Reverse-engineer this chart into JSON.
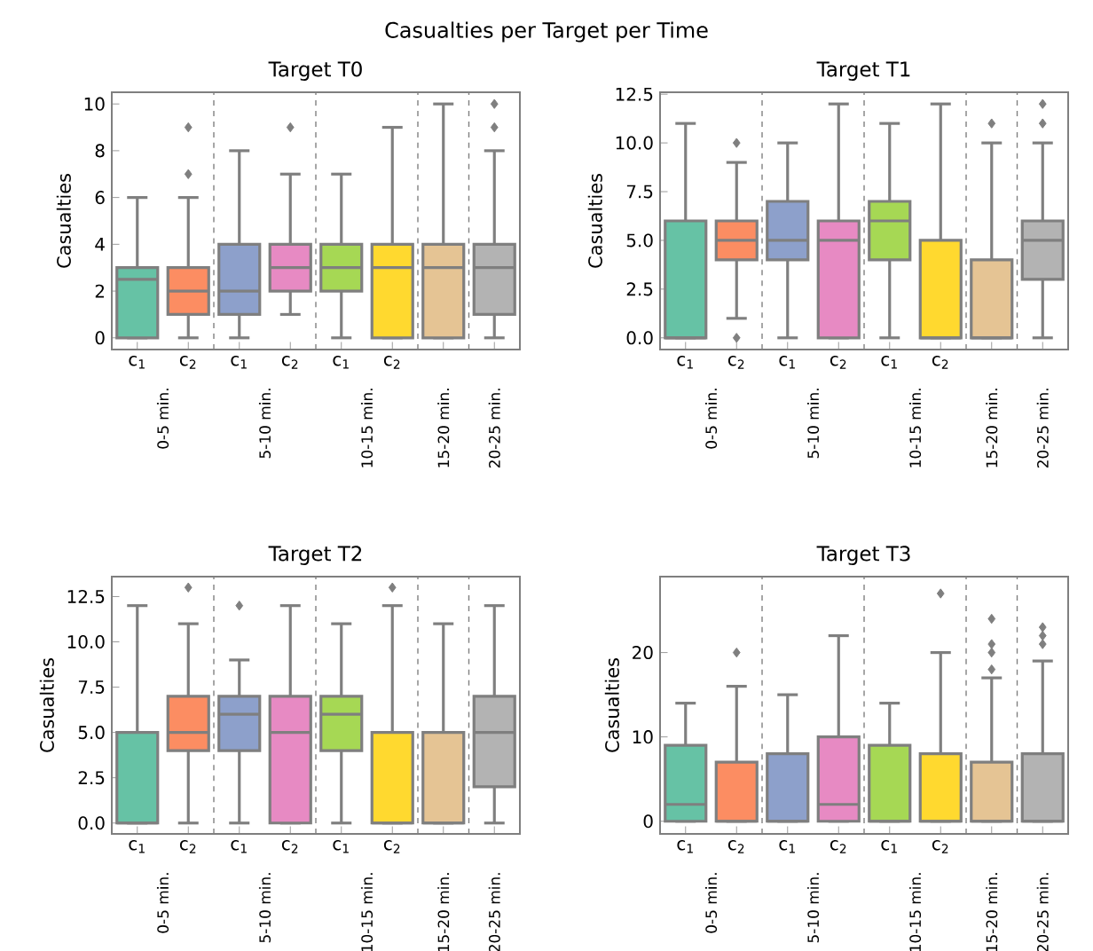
{
  "chart_data": [
    {
      "type": "box",
      "title": "Target T0",
      "ylabel": "Casualties",
      "categories": [
        "c$_{1}$",
        "c$_{2}$",
        "c$_{1}$",
        "c$_{2}$",
        "c$_{1}$",
        "c$_{2}$",
        null,
        null
      ],
      "colors": [
        "#66c2a5",
        "#fc8d62",
        "#8da0cb",
        "#e78ac3",
        "#a6d854",
        "#ffd92f",
        "#e5c494",
        "#b3b3b3"
      ],
      "boxes": [
        {
          "low": 0,
          "q1": 0,
          "median": 2.5,
          "q3": 3,
          "high": 6
        },
        {
          "low": 0,
          "q1": 1,
          "median": 2,
          "q3": 3,
          "high": 6,
          "outliers": [
            7,
            9
          ]
        },
        {
          "low": 0,
          "q1": 1,
          "median": 2,
          "q3": 4,
          "high": 8
        },
        {
          "low": 1,
          "q1": 2,
          "median": 3,
          "q3": 4,
          "high": 7,
          "outliers": [
            9
          ]
        },
        {
          "low": 0,
          "q1": 2,
          "median": 3,
          "q3": 4,
          "high": 7
        },
        {
          "low": 0,
          "q1": 0,
          "median": 3,
          "q3": 4,
          "high": 9
        },
        {
          "low": 0,
          "q1": 0,
          "median": 3,
          "q3": 4,
          "high": 10
        },
        {
          "low": 0,
          "q1": 1,
          "median": 3,
          "q3": 4,
          "high": 8,
          "outliers": [
            9,
            10
          ]
        }
      ],
      "ylim": [
        -0.5,
        10.5
      ],
      "yticks": [
        0,
        2,
        4,
        6,
        8,
        10
      ],
      "annotations": [
        "Casualties per Target per Time",
        "0-5 min.",
        "5-10 min.",
        "10-15 min.",
        "15-20 min.",
        "20-25 min."
      ]
    },
    {
      "type": "box",
      "title": "Target T1",
      "ylabel": "Casualties",
      "categories": [
        "c$_{1}$",
        "c$_{2}$",
        "c$_{1}$",
        "c$_{2}$",
        "c$_{1}$",
        "c$_{2}$",
        null,
        null
      ],
      "colors": [
        "#66c2a5",
        "#fc8d62",
        "#8da0cb",
        "#e78ac3",
        "#a6d854",
        "#ffd92f",
        "#e5c494",
        "#b3b3b3"
      ],
      "boxes": [
        {
          "low": 0,
          "q1": 0,
          "median": 0,
          "q3": 6,
          "high": 11
        },
        {
          "low": 1,
          "q1": 4,
          "median": 5,
          "q3": 6,
          "high": 9,
          "outliers": [
            0,
            10
          ]
        },
        {
          "low": 0,
          "q1": 4,
          "median": 5,
          "q3": 7,
          "high": 10
        },
        {
          "low": 0,
          "q1": 0,
          "median": 5,
          "q3": 6,
          "high": 12
        },
        {
          "low": 0,
          "q1": 4,
          "median": 6,
          "q3": 7,
          "high": 11
        },
        {
          "low": 0,
          "q1": 0,
          "median": 0,
          "q3": 5,
          "high": 12
        },
        {
          "low": 0,
          "q1": 0,
          "median": 0,
          "q3": 4,
          "high": 10,
          "outliers": [
            11
          ]
        },
        {
          "low": 0,
          "q1": 3,
          "median": 5,
          "q3": 6,
          "high": 10,
          "outliers": [
            11,
            12
          ]
        }
      ],
      "ylim": [
        -0.6,
        12.6
      ],
      "yticks": [
        {
          "value": 0,
          "label": "0.0"
        },
        2.5,
        {
          "value": 5,
          "label": "5.0"
        },
        7.5,
        {
          "value": 10,
          "label": "10.0"
        },
        12.5
      ],
      "annotations": [
        "0-5 min.",
        "5-10 min.",
        "10-15 min.",
        "15-20 min.",
        "20-25 min."
      ]
    },
    {
      "type": "box",
      "title": "Target T2",
      "ylabel": "Casualties",
      "categories": [
        "c$_{1}$",
        "c$_{2}$",
        "c$_{1}$",
        "c$_{2}$",
        "c$_{1}$",
        "c$_{2}$",
        null,
        null
      ],
      "colors": [
        "#66c2a5",
        "#fc8d62",
        "#8da0cb",
        "#e78ac3",
        "#a6d854",
        "#ffd92f",
        "#e5c494",
        "#b3b3b3"
      ],
      "boxes": [
        {
          "low": 0,
          "q1": 0,
          "median": 0,
          "q3": 5,
          "high": 12
        },
        {
          "low": 0,
          "q1": 4,
          "median": 5,
          "q3": 7,
          "high": 11,
          "outliers": [
            13
          ]
        },
        {
          "low": 0,
          "q1": 4,
          "median": 6,
          "q3": 7,
          "high": 9,
          "outliers": [
            12
          ]
        },
        {
          "low": 0,
          "q1": 0,
          "median": 5,
          "q3": 7,
          "high": 12
        },
        {
          "low": 0,
          "q1": 4,
          "median": 6,
          "q3": 7,
          "high": 11
        },
        {
          "low": 0,
          "q1": 0,
          "median": 0,
          "q3": 5,
          "high": 12,
          "outliers": [
            13
          ]
        },
        {
          "low": 0,
          "q1": 0,
          "median": 0,
          "q3": 5,
          "high": 11
        },
        {
          "low": 0,
          "q1": 2,
          "median": 5,
          "q3": 7,
          "high": 12
        }
      ],
      "ylim": [
        -0.6,
        13.6
      ],
      "yticks": [
        {
          "value": 0,
          "label": "0.0"
        },
        2.5,
        {
          "value": 5,
          "label": "5.0"
        },
        7.5,
        {
          "value": 10,
          "label": "10.0"
        },
        12.5
      ],
      "annotations": [
        "0-5 min.",
        "5-10 min.",
        "10-15 min.",
        "15-20 min.",
        "20-25 min."
      ]
    },
    {
      "type": "box",
      "title": "Target T3",
      "ylabel": "Casualties",
      "categories": [
        "c$_{1}$",
        "c$_{2}$",
        "c$_{1}$",
        "c$_{2}$",
        "c$_{1}$",
        "c$_{2}$",
        null,
        null
      ],
      "colors": [
        "#66c2a5",
        "#fc8d62",
        "#8da0cb",
        "#e78ac3",
        "#a6d854",
        "#ffd92f",
        "#e5c494",
        "#b3b3b3"
      ],
      "boxes": [
        {
          "low": 0,
          "q1": 0,
          "median": 2,
          "q3": 9,
          "high": 14
        },
        {
          "low": 0,
          "q1": 0,
          "median": 0,
          "q3": 7,
          "high": 16,
          "outliers": [
            20
          ]
        },
        {
          "low": 0,
          "q1": 0,
          "median": 0,
          "q3": 8,
          "high": 15
        },
        {
          "low": 0,
          "q1": 0,
          "median": 2,
          "q3": 10,
          "high": 22
        },
        {
          "low": 0,
          "q1": 0,
          "median": 0,
          "q3": 9,
          "high": 14
        },
        {
          "low": 0,
          "q1": 0,
          "median": 0,
          "q3": 8,
          "high": 20,
          "outliers": [
            27
          ]
        },
        {
          "low": 0,
          "q1": 0,
          "median": 0,
          "q3": 7,
          "high": 17,
          "outliers": [
            18,
            20,
            21,
            24
          ]
        },
        {
          "low": 0,
          "q1": 0,
          "median": 0,
          "q3": 8,
          "high": 19,
          "outliers": [
            21,
            22,
            23
          ]
        }
      ],
      "ylim": [
        -1.5,
        29
      ],
      "yticks": [
        0,
        10,
        20
      ],
      "annotations": [
        "0-5 min.",
        "5-10 min.",
        "10-15 min.",
        "15-20 min.",
        "20-25 min."
      ]
    }
  ]
}
